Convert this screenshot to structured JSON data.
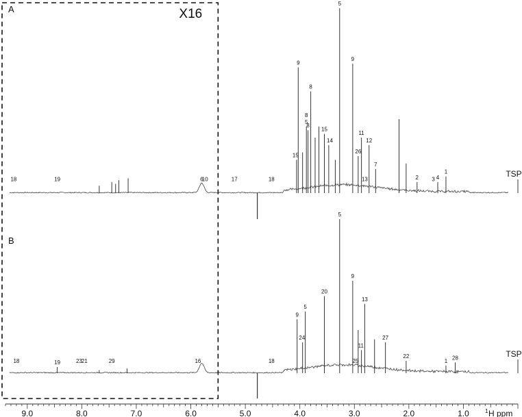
{
  "chart_data": {
    "type": "line",
    "title": "",
    "xlabel_sup": "1",
    "xlabel_main": "H ppm",
    "xlim": [
      9.4,
      0.0
    ],
    "x_ticks": [
      "9.0",
      "8.0",
      "7.0",
      "6.0",
      "5.0",
      "4.0",
      "3.0",
      "2.0",
      "1.0"
    ],
    "x_tick_values": [
      9.0,
      8.0,
      7.0,
      6.0,
      5.0,
      4.0,
      3.0,
      2.0,
      1.0
    ],
    "expansion_label": "X16",
    "expansion_range": [
      9.4,
      5.5
    ],
    "reference_label": "TSP",
    "reference_ppm": 0.0,
    "panels": [
      {
        "id": "A",
        "label": "A",
        "peaks": [
          {
            "ppm": 3.27,
            "h": 1.0
          },
          {
            "ppm": 3.03,
            "h": 0.7
          },
          {
            "ppm": 4.03,
            "h": 0.68
          },
          {
            "ppm": 3.8,
            "h": 0.55
          },
          {
            "ppm": 2.18,
            "h": 0.4
          },
          {
            "ppm": 3.88,
            "h": 0.36
          },
          {
            "ppm": 3.85,
            "h": 0.34
          },
          {
            "ppm": 3.55,
            "h": 0.32
          },
          {
            "ppm": 3.65,
            "h": 0.36
          },
          {
            "ppm": 3.72,
            "h": 0.3
          },
          {
            "ppm": 3.47,
            "h": 0.26
          },
          {
            "ppm": 2.87,
            "h": 0.3
          },
          {
            "ppm": 2.73,
            "h": 0.26
          },
          {
            "ppm": 2.93,
            "h": 0.2
          },
          {
            "ppm": 2.61,
            "h": 0.13
          },
          {
            "ppm": 3.35,
            "h": 0.18
          },
          {
            "ppm": 2.05,
            "h": 0.16
          },
          {
            "ppm": 1.32,
            "h": 0.09
          },
          {
            "ppm": 1.47,
            "h": 0.06
          },
          {
            "ppm": 1.85,
            "h": 0.06
          },
          {
            "ppm": 4.06,
            "h": 0.18
          },
          {
            "ppm": 3.95,
            "h": 0.22
          },
          {
            "ppm": 7.38,
            "h": 0.05
          },
          {
            "ppm": 7.32,
            "h": 0.07
          },
          {
            "ppm": 7.45,
            "h": 0.06
          },
          {
            "ppm": 7.15,
            "h": 0.08
          },
          {
            "ppm": 7.68,
            "h": 0.04
          }
        ],
        "labels": [
          {
            "text": "5",
            "ppm": 3.27
          },
          {
            "text": "9",
            "ppm": 4.03
          },
          {
            "text": "9",
            "ppm": 3.03
          },
          {
            "text": "8",
            "ppm": 3.8
          },
          {
            "text": "5",
            "ppm": 3.88
          },
          {
            "text": "8",
            "ppm": 3.88
          },
          {
            "text": "8",
            "ppm": 3.85
          },
          {
            "text": "15",
            "ppm": 3.55
          },
          {
            "text": "15",
            "ppm": 4.08
          },
          {
            "text": "14",
            "ppm": 3.45
          },
          {
            "text": "11",
            "ppm": 2.87
          },
          {
            "text": "12",
            "ppm": 2.73
          },
          {
            "text": "7",
            "ppm": 2.61
          },
          {
            "text": "26",
            "ppm": 2.93
          },
          {
            "text": "13",
            "ppm": 2.81
          },
          {
            "text": "2",
            "ppm": 1.85
          },
          {
            "text": "1",
            "ppm": 1.32
          },
          {
            "text": "4",
            "ppm": 1.47
          },
          {
            "text": "3",
            "ppm": 1.55
          },
          {
            "text": "6",
            "ppm": 5.8
          },
          {
            "text": "10",
            "ppm": 5.74
          },
          {
            "text": "17",
            "ppm": 5.2
          },
          {
            "text": "18",
            "ppm": 4.52
          },
          {
            "text": "18",
            "ppm": 9.25
          },
          {
            "text": "19",
            "ppm": 8.45
          }
        ]
      },
      {
        "id": "B",
        "label": "B",
        "peaks": [
          {
            "ppm": 3.27,
            "h": 1.0
          },
          {
            "ppm": 3.55,
            "h": 0.5
          },
          {
            "ppm": 3.03,
            "h": 0.6
          },
          {
            "ppm": 4.05,
            "h": 0.35
          },
          {
            "ppm": 3.9,
            "h": 0.4
          },
          {
            "ppm": 2.81,
            "h": 0.45
          },
          {
            "ppm": 2.93,
            "h": 0.28
          },
          {
            "ppm": 2.43,
            "h": 0.2
          },
          {
            "ppm": 2.63,
            "h": 0.22
          },
          {
            "ppm": 2.87,
            "h": 0.15
          },
          {
            "ppm": 3.95,
            "h": 0.2
          },
          {
            "ppm": 1.15,
            "h": 0.07
          },
          {
            "ppm": 1.32,
            "h": 0.05
          },
          {
            "ppm": 2.05,
            "h": 0.08
          },
          {
            "ppm": 8.45,
            "h": 0.04
          },
          {
            "ppm": 7.17,
            "h": 0.03
          },
          {
            "ppm": 7.68,
            "h": 0.02
          }
        ],
        "labels": [
          {
            "text": "5",
            "ppm": 3.27
          },
          {
            "text": "20",
            "ppm": 3.55
          },
          {
            "text": "9",
            "ppm": 3.03
          },
          {
            "text": "9",
            "ppm": 4.05
          },
          {
            "text": "5",
            "ppm": 3.9
          },
          {
            "text": "13",
            "ppm": 2.81
          },
          {
            "text": "25",
            "ppm": 2.98
          },
          {
            "text": "11",
            "ppm": 2.88
          },
          {
            "text": "24",
            "ppm": 3.96
          },
          {
            "text": "27",
            "ppm": 2.43
          },
          {
            "text": "22",
            "ppm": 2.05
          },
          {
            "text": "1",
            "ppm": 1.32
          },
          {
            "text": "28",
            "ppm": 1.15
          },
          {
            "text": "16",
            "ppm": 5.87
          },
          {
            "text": "18",
            "ppm": 4.52
          },
          {
            "text": "18",
            "ppm": 9.2
          },
          {
            "text": "19",
            "ppm": 8.45
          },
          {
            "text": "21",
            "ppm": 7.95
          },
          {
            "text": "23",
            "ppm": 8.05
          },
          {
            "text": "29",
            "ppm": 7.45
          }
        ]
      }
    ]
  }
}
